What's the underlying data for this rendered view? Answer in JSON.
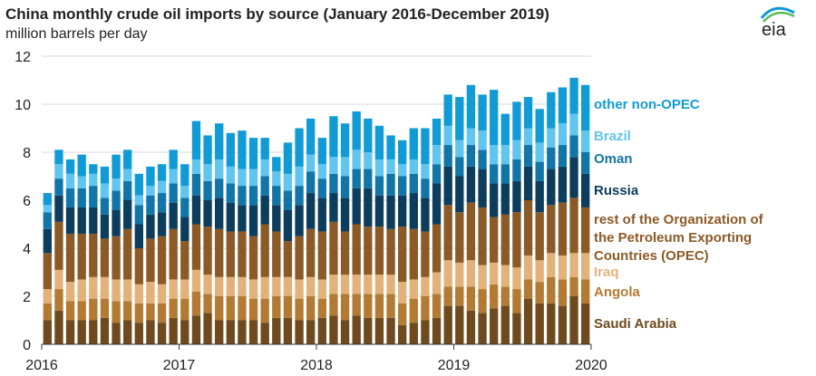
{
  "title": "China monthly crude oil imports by source (January 2016-December 2019)",
  "subtitle": "million barrels per day",
  "logo": {
    "text": "eia"
  },
  "chart_data": {
    "type": "bar",
    "stacked": true,
    "ylabel": "million barrels per day",
    "ylim": [
      0,
      12
    ],
    "yticks": [
      0,
      2,
      4,
      6,
      8,
      10,
      12
    ],
    "xticks": [
      "2016",
      "2017",
      "2018",
      "2019",
      "2020"
    ],
    "grid": "horizontal",
    "legend_placement": "right",
    "categories": [
      "Jan 2016",
      "Feb 2016",
      "Mar 2016",
      "Apr 2016",
      "May 2016",
      "Jun 2016",
      "Jul 2016",
      "Aug 2016",
      "Sep 2016",
      "Oct 2016",
      "Nov 2016",
      "Dec 2016",
      "Jan 2017",
      "Feb 2017",
      "Mar 2017",
      "Apr 2017",
      "May 2017",
      "Jun 2017",
      "Jul 2017",
      "Aug 2017",
      "Sep 2017",
      "Oct 2017",
      "Nov 2017",
      "Dec 2017",
      "Jan 2018",
      "Feb 2018",
      "Mar 2018",
      "Apr 2018",
      "May 2018",
      "Jun 2018",
      "Jul 2018",
      "Aug 2018",
      "Sep 2018",
      "Oct 2018",
      "Nov 2018",
      "Dec 2018",
      "Jan 2019",
      "Feb 2019",
      "Mar 2019",
      "Apr 2019",
      "May 2019",
      "Jun 2019",
      "Jul 2019",
      "Aug 2019",
      "Sep 2019",
      "Oct 2019",
      "Nov 2019",
      "Dec 2019"
    ],
    "series": [
      {
        "name": "Saudi Arabia",
        "color": "#6e4a1e",
        "values": [
          1.0,
          1.4,
          1.0,
          1.0,
          1.0,
          1.1,
          0.9,
          1.0,
          0.9,
          1.0,
          0.9,
          1.1,
          1.0,
          1.2,
          1.3,
          1.0,
          1.0,
          1.0,
          1.0,
          0.9,
          1.1,
          1.1,
          1.0,
          1.0,
          1.1,
          1.2,
          1.0,
          1.2,
          1.1,
          1.1,
          1.1,
          0.8,
          0.9,
          1.0,
          1.1,
          1.6,
          1.6,
          1.4,
          1.3,
          1.5,
          1.6,
          1.3,
          1.9,
          1.7,
          1.7,
          1.6,
          2.0,
          1.7
        ]
      },
      {
        "name": "Angola",
        "color": "#b27a33",
        "values": [
          0.7,
          0.9,
          0.8,
          0.8,
          0.9,
          0.8,
          0.9,
          0.8,
          0.8,
          0.7,
          0.8,
          0.8,
          0.9,
          1.0,
          0.8,
          1.0,
          1.0,
          1.0,
          0.9,
          1.0,
          0.9,
          0.9,
          0.9,
          1.0,
          0.8,
          0.9,
          1.1,
          0.9,
          1.0,
          1.0,
          1.0,
          0.9,
          1.0,
          1.0,
          1.0,
          0.8,
          0.8,
          1.0,
          1.0,
          1.0,
          0.8,
          1.0,
          0.8,
          0.9,
          1.1,
          1.1,
          0.8,
          1.0
        ]
      },
      {
        "name": "Iraq",
        "color": "#e2b27a",
        "values": [
          0.6,
          0.8,
          0.8,
          0.9,
          0.9,
          0.9,
          0.9,
          0.9,
          0.8,
          0.9,
          0.8,
          0.8,
          0.8,
          0.9,
          0.8,
          0.8,
          0.8,
          0.8,
          0.8,
          0.9,
          0.8,
          0.8,
          0.8,
          0.8,
          0.8,
          0.8,
          0.8,
          0.8,
          0.8,
          0.8,
          0.8,
          0.9,
          0.8,
          0.8,
          0.9,
          1.1,
          1.0,
          1.1,
          1.0,
          0.9,
          0.9,
          0.9,
          1.0,
          0.9,
          1.0,
          1.0,
          1.0,
          1.1
        ]
      },
      {
        "name": "rest of the Organization of the Petroleum Exporting Countries (OPEC)",
        "color": "#8b5a26",
        "values": [
          1.5,
          2.0,
          2.0,
          1.9,
          1.8,
          1.6,
          1.8,
          2.1,
          1.5,
          1.8,
          2.0,
          2.1,
          1.6,
          1.9,
          2.0,
          2.0,
          1.9,
          1.9,
          1.8,
          2.2,
          1.9,
          1.5,
          1.8,
          2.0,
          2.0,
          2.2,
          1.8,
          2.1,
          2.0,
          2.0,
          1.9,
          2.3,
          2.1,
          1.9,
          2.0,
          2.3,
          2.1,
          2.4,
          2.4,
          1.9,
          2.1,
          2.3,
          2.3,
          2.0,
          2.0,
          2.2,
          2.3,
          1.9
        ]
      },
      {
        "name": "Russia",
        "color": "#0d3d5c",
        "values": [
          1.0,
          1.1,
          1.1,
          1.1,
          1.1,
          1.0,
          1.1,
          1.2,
          1.0,
          1.0,
          1.0,
          1.1,
          1.0,
          1.2,
          1.1,
          1.3,
          1.2,
          1.1,
          1.3,
          1.2,
          1.1,
          1.3,
          1.3,
          1.5,
          1.4,
          1.2,
          1.4,
          1.5,
          1.6,
          1.3,
          1.4,
          1.3,
          1.5,
          1.4,
          1.7,
          1.6,
          1.5,
          1.5,
          1.6,
          1.4,
          1.3,
          1.3,
          1.4,
          1.3,
          1.5,
          1.5,
          1.7,
          1.4
        ]
      },
      {
        "name": "Oman",
        "color": "#1175a8",
        "values": [
          0.7,
          0.7,
          0.8,
          0.8,
          0.9,
          0.7,
          0.8,
          0.8,
          0.8,
          0.8,
          0.8,
          0.8,
          0.8,
          0.9,
          0.8,
          0.8,
          0.8,
          0.8,
          0.8,
          0.8,
          0.8,
          0.8,
          0.8,
          0.9,
          0.8,
          0.8,
          0.9,
          0.8,
          0.8,
          0.8,
          0.9,
          0.8,
          0.8,
          0.8,
          0.8,
          0.9,
          0.8,
          0.9,
          0.8,
          0.8,
          0.8,
          0.9,
          0.9,
          0.8,
          0.9,
          0.9,
          0.9,
          0.9
        ]
      },
      {
        "name": "Brazil",
        "color": "#60c5ef",
        "values": [
          0.3,
          0.6,
          0.6,
          0.5,
          0.5,
          0.6,
          0.5,
          0.5,
          0.4,
          0.4,
          0.5,
          0.6,
          0.5,
          0.6,
          0.7,
          0.8,
          0.7,
          0.7,
          0.7,
          0.7,
          0.6,
          0.7,
          0.8,
          0.7,
          0.6,
          0.7,
          0.8,
          0.8,
          0.7,
          0.7,
          0.6,
          0.5,
          0.6,
          0.6,
          0.8,
          0.8,
          0.7,
          0.7,
          0.8,
          0.8,
          0.8,
          0.8,
          0.7,
          0.8,
          0.8,
          0.9,
          0.9,
          0.9
        ]
      },
      {
        "name": "other non-OPEC",
        "color": "#119bd6",
        "values": [
          0.5,
          0.6,
          0.6,
          0.9,
          0.4,
          0.7,
          1.0,
          0.8,
          0.9,
          0.8,
          0.7,
          0.8,
          0.9,
          1.6,
          1.2,
          1.5,
          1.4,
          1.6,
          1.3,
          0.9,
          0.6,
          1.3,
          1.6,
          1.5,
          1.1,
          1.7,
          1.4,
          1.6,
          1.4,
          1.4,
          1.0,
          1.0,
          1.3,
          1.5,
          1.1,
          1.3,
          1.8,
          1.8,
          1.5,
          2.3,
          1.3,
          1.6,
          1.3,
          1.4,
          1.5,
          1.5,
          1.5,
          1.9
        ]
      }
    ]
  },
  "legend_labels": [
    {
      "lines": [
        "other non-OPEC"
      ],
      "color": "#119bd6"
    },
    {
      "lines": [
        "Brazil"
      ],
      "color": "#60c5ef"
    },
    {
      "lines": [
        "Oman"
      ],
      "color": "#1175a8"
    },
    {
      "lines": [
        "Russia"
      ],
      "color": "#0d3d5c"
    },
    {
      "lines": [
        "rest of the Organization of",
        "the Petroleum Exporting",
        "Countries (OPEC)"
      ],
      "color": "#8b5a26"
    },
    {
      "lines": [
        "Iraq"
      ],
      "color": "#e2b27a"
    },
    {
      "lines": [
        "Angola"
      ],
      "color": "#b27a33"
    },
    {
      "lines": [
        "Saudi Arabia"
      ],
      "color": "#6e4a1e"
    }
  ]
}
